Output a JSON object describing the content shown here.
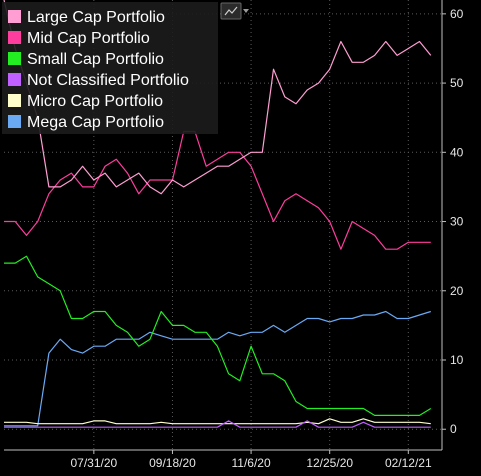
{
  "chart_data": {
    "type": "line",
    "title": "",
    "xlabel": "",
    "ylabel": "",
    "ylim": [
      -3,
      62
    ],
    "y_ticks": [
      0,
      10,
      20,
      30,
      40,
      50,
      60
    ],
    "y_tick_labels": [
      "0",
      "10",
      "20",
      "30",
      "40",
      "50",
      "60"
    ],
    "x_ticks": [
      "2020-07-31",
      "2020-09-18",
      "2020-11-06",
      "2020-12-25",
      "2021-02-12"
    ],
    "x_tick_labels": [
      "07/31/20",
      "09/18/20",
      "11/6/20",
      "12/25/20",
      "02/12/21"
    ],
    "x_range": [
      "2020-06-05",
      "2021-03-05"
    ],
    "grid": true,
    "legend": "top-left",
    "dates": [
      "2020-06-05",
      "2020-06-12",
      "2020-06-19",
      "2020-06-26",
      "2020-07-03",
      "2020-07-10",
      "2020-07-17",
      "2020-07-24",
      "2020-07-31",
      "2020-08-07",
      "2020-08-14",
      "2020-08-21",
      "2020-08-28",
      "2020-09-04",
      "2020-09-11",
      "2020-09-18",
      "2020-09-25",
      "2020-10-02",
      "2020-10-09",
      "2020-10-16",
      "2020-10-23",
      "2020-10-30",
      "2020-11-06",
      "2020-11-13",
      "2020-11-20",
      "2020-11-27",
      "2020-12-04",
      "2020-12-11",
      "2020-12-18",
      "2020-12-25",
      "2021-01-01",
      "2021-01-08",
      "2021-01-15",
      "2021-01-22",
      "2021-01-29",
      "2021-02-05",
      "2021-02-12",
      "2021-02-19",
      "2021-02-26"
    ],
    "series": [
      {
        "name": "Large Cap Portfolio",
        "color": "#ff9ed2",
        "values": [
          62,
          55,
          50,
          45,
          35,
          35,
          36,
          38,
          36,
          37,
          35,
          36,
          37,
          35,
          34,
          36,
          35,
          36,
          37,
          38,
          38,
          39,
          40,
          40,
          52,
          48,
          47,
          49,
          50,
          52,
          56,
          53,
          53,
          54,
          56,
          54,
          55,
          56,
          54
        ]
      },
      {
        "name": "Mid Cap Portfolio",
        "color": "#ff3d9e",
        "values": [
          30,
          30,
          28,
          30,
          34,
          36,
          37,
          35,
          35,
          38,
          39,
          37,
          34,
          36,
          36,
          36,
          43,
          43,
          38,
          39,
          40,
          40,
          38,
          34,
          30,
          33,
          34,
          33,
          32,
          30,
          26,
          30,
          29,
          28,
          26,
          26,
          27,
          27,
          27
        ]
      },
      {
        "name": "Small Cap Portfolio",
        "color": "#22ee22",
        "values": [
          24,
          24,
          25,
          22,
          21,
          20,
          16,
          16,
          17,
          17,
          15,
          14,
          12,
          13,
          17,
          15,
          15,
          14,
          14,
          12,
          8,
          7,
          12,
          8,
          8,
          7,
          4,
          3,
          3,
          3,
          3,
          3,
          3,
          2,
          2,
          2,
          2,
          2,
          3
        ]
      },
      {
        "name": "Not Classified Portfolio",
        "color": "#c060ff",
        "values": [
          0.3,
          0.3,
          0.3,
          0.3,
          0.3,
          0.3,
          0.3,
          0.3,
          0.3,
          0.3,
          0.3,
          0.3,
          0.3,
          0.3,
          0.3,
          0.3,
          0.3,
          0.3,
          0.3,
          0.3,
          1.2,
          0.3,
          0.3,
          0.3,
          0.3,
          0.3,
          0.3,
          1.2,
          0.3,
          0.3,
          0.3,
          0.3,
          1.0,
          0.3,
          0.3,
          0.3,
          0.3,
          0.3,
          0.3
        ]
      },
      {
        "name": "Micro Cap Portfolio",
        "color": "#ffffcc",
        "values": [
          1,
          1,
          1,
          0.8,
          0.8,
          0.8,
          0.8,
          0.8,
          1.2,
          1.2,
          0.8,
          0.8,
          0.8,
          0.8,
          1,
          0.8,
          0.8,
          0.8,
          0.8,
          0.8,
          0.8,
          0.8,
          0.8,
          0.8,
          0.8,
          0.8,
          0.8,
          1,
          0.8,
          1.5,
          1,
          1,
          1.5,
          1,
          1,
          1,
          1,
          1,
          0.8
        ]
      },
      {
        "name": "Mega Cap Portfolio",
        "color": "#6aaaf5",
        "values": [
          0.5,
          0.5,
          0.5,
          0.5,
          11,
          13,
          11.5,
          11,
          12,
          12,
          13,
          13,
          13,
          14,
          13.5,
          13,
          13,
          13,
          13,
          13,
          14,
          13.5,
          14,
          14,
          15,
          14,
          15,
          16,
          16,
          15.5,
          16,
          16,
          16.5,
          16.5,
          17,
          16,
          16,
          16.5,
          17
        ]
      }
    ]
  }
}
